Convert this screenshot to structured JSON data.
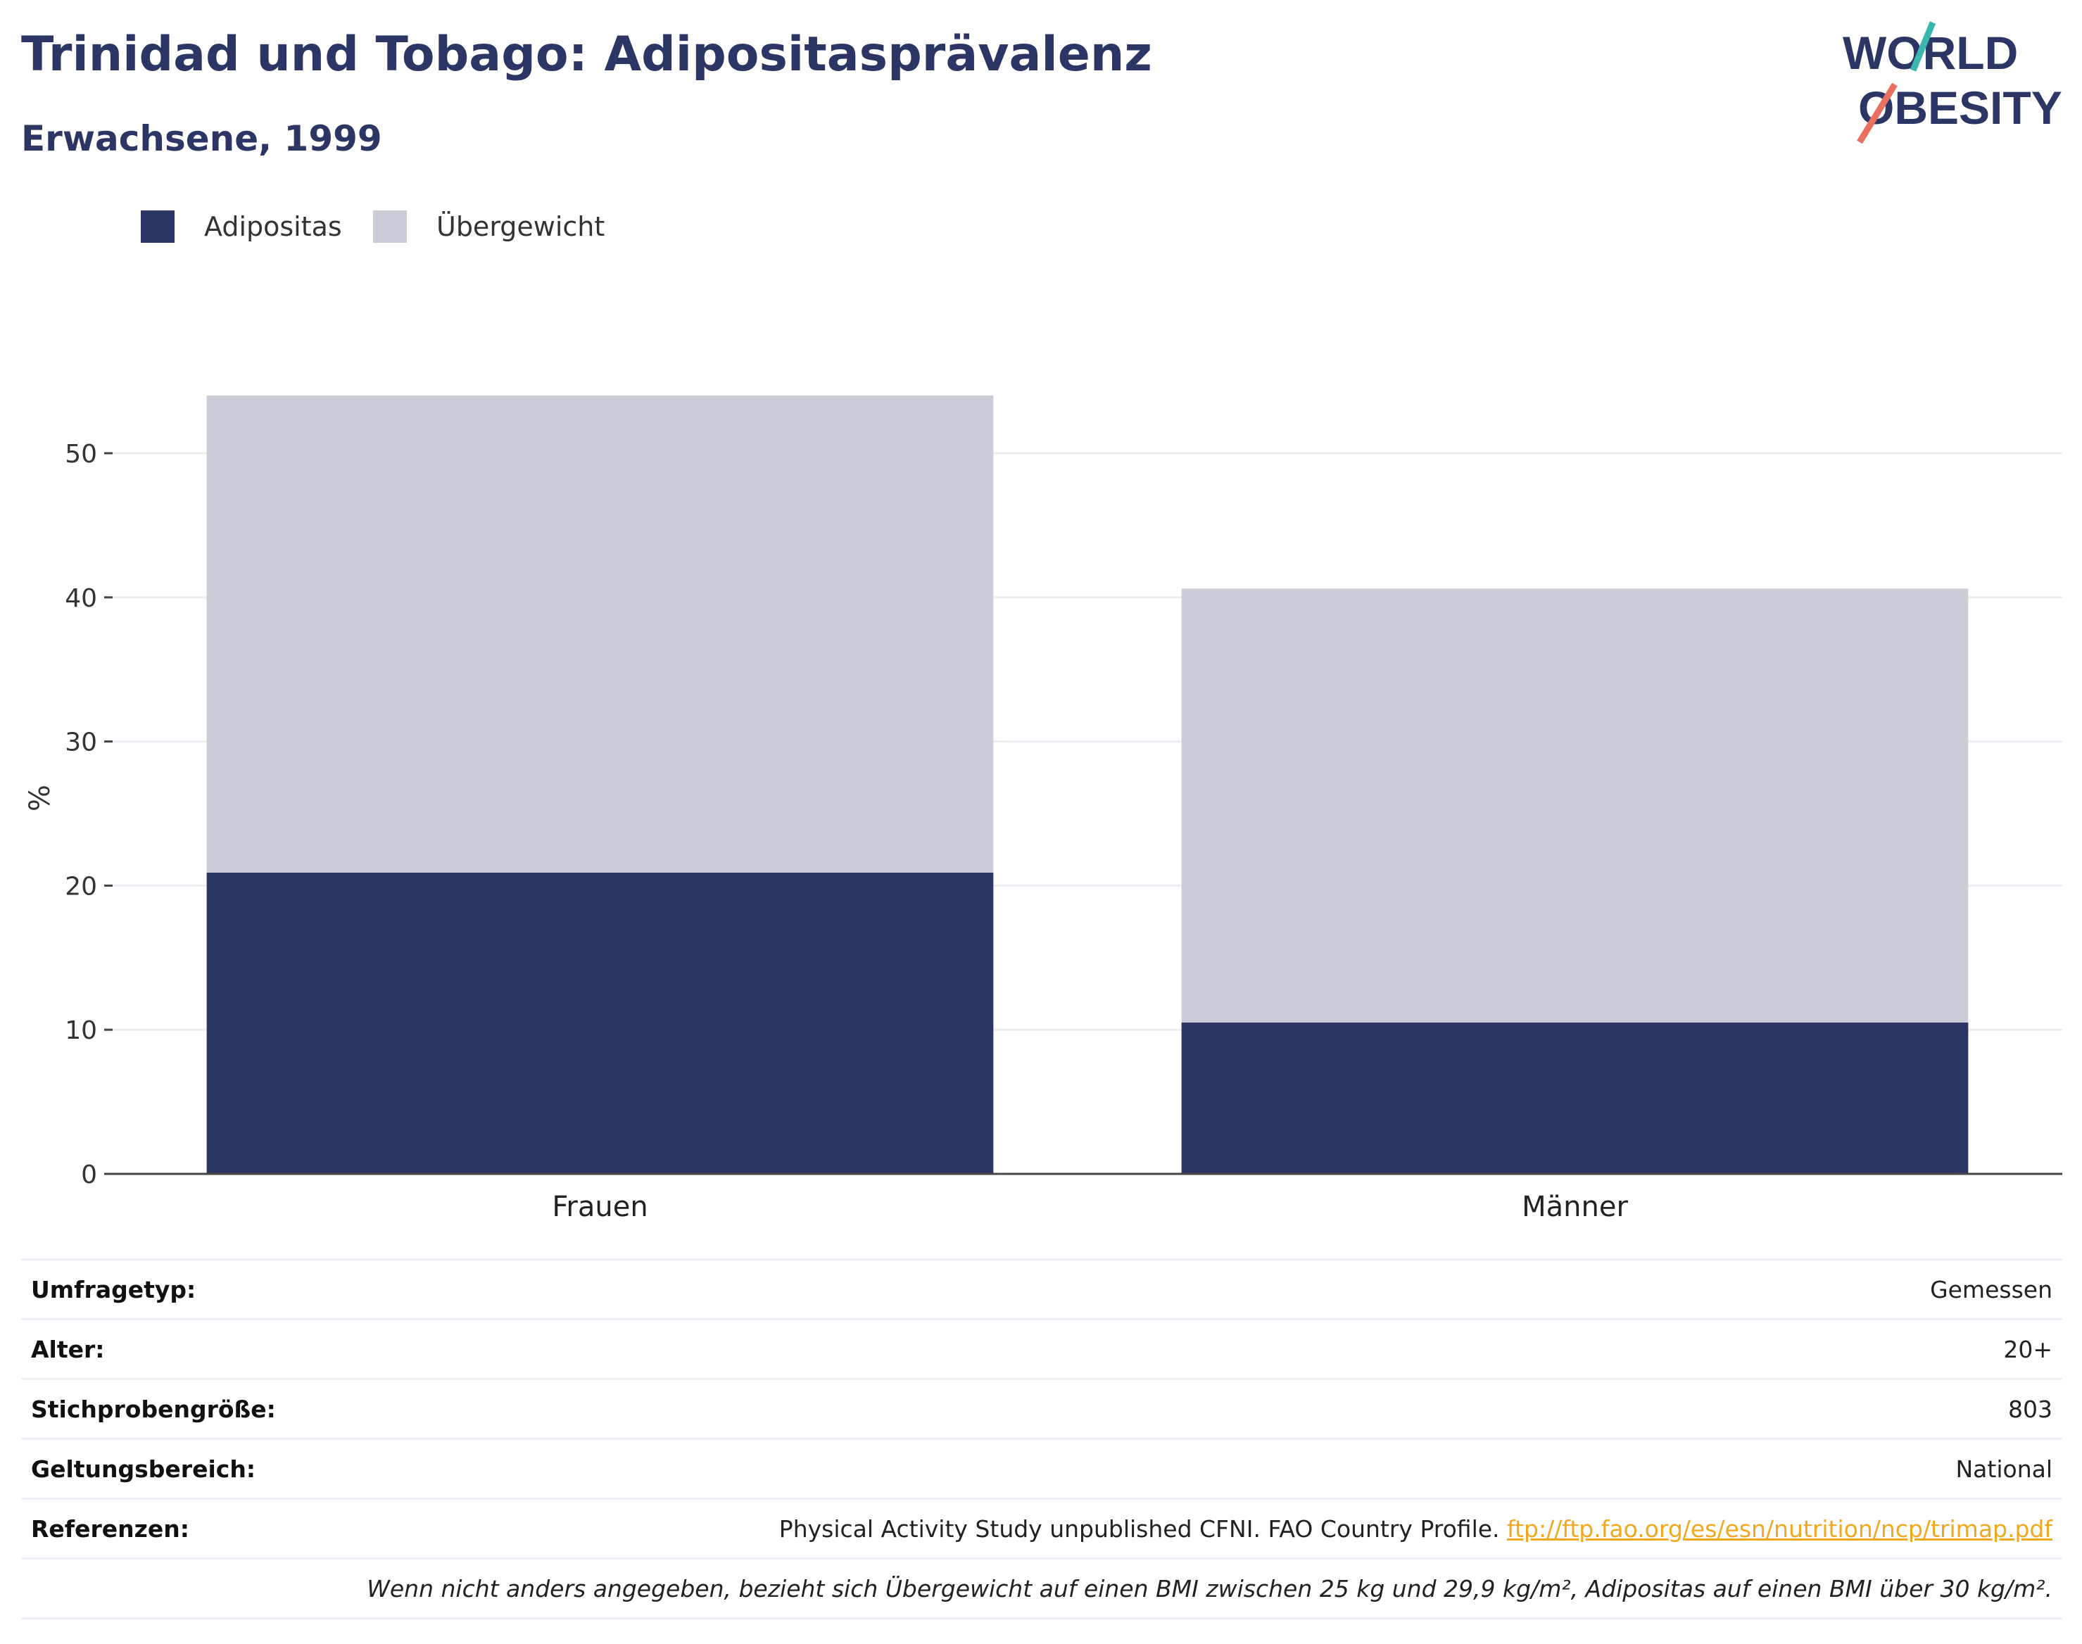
{
  "header": {
    "title": "Trinidad und Tobago: Adipositasprävalenz",
    "subtitle": "Erwachsene, 1999"
  },
  "logo": {
    "line1": "WORLD",
    "line2": "OBESITY",
    "text_color": "#2b3664",
    "accent_teal": "#3bb7b0",
    "accent_coral": "#e8705f"
  },
  "legend": {
    "items": [
      {
        "label": "Adipositas",
        "color": "#2b3664"
      },
      {
        "label": "Übergewicht",
        "color": "#cacdd8"
      }
    ]
  },
  "chart_data": {
    "type": "bar",
    "stacked": true,
    "categories": [
      "Frauen",
      "Männer"
    ],
    "series": [
      {
        "name": "Adipositas",
        "values": [
          20.9,
          10.5
        ],
        "color": "#2b3664"
      },
      {
        "name": "Übergewicht",
        "values": [
          33.1,
          30.1
        ],
        "color": "#cacdd8"
      }
    ],
    "ylabel": "%",
    "ylim": [
      0,
      54
    ],
    "yticks": [
      0,
      10,
      20,
      30,
      40,
      50
    ],
    "grid": true,
    "legend_position": "top-left"
  },
  "meta": {
    "rows": [
      {
        "key": "Umfragetyp:",
        "value": "Gemessen"
      },
      {
        "key": "Alter:",
        "value": "20+"
      },
      {
        "key": "Stichprobengröße:",
        "value": "803"
      },
      {
        "key": "Geltungsbereich:",
        "value": "National"
      }
    ],
    "references": {
      "key": "Referenzen:",
      "text": "Physical Activity Study unpublished CFNI. FAO Country Profile. ",
      "link": "ftp://ftp.fao.org/es/esn/nutrition/ncp/trimap.pdf"
    },
    "note": "Wenn nicht anders angegeben, bezieht sich Übergewicht auf einen BMI zwischen 25 kg und 29,9 kg/m², Adipositas auf einen BMI über 30 kg/m²."
  }
}
